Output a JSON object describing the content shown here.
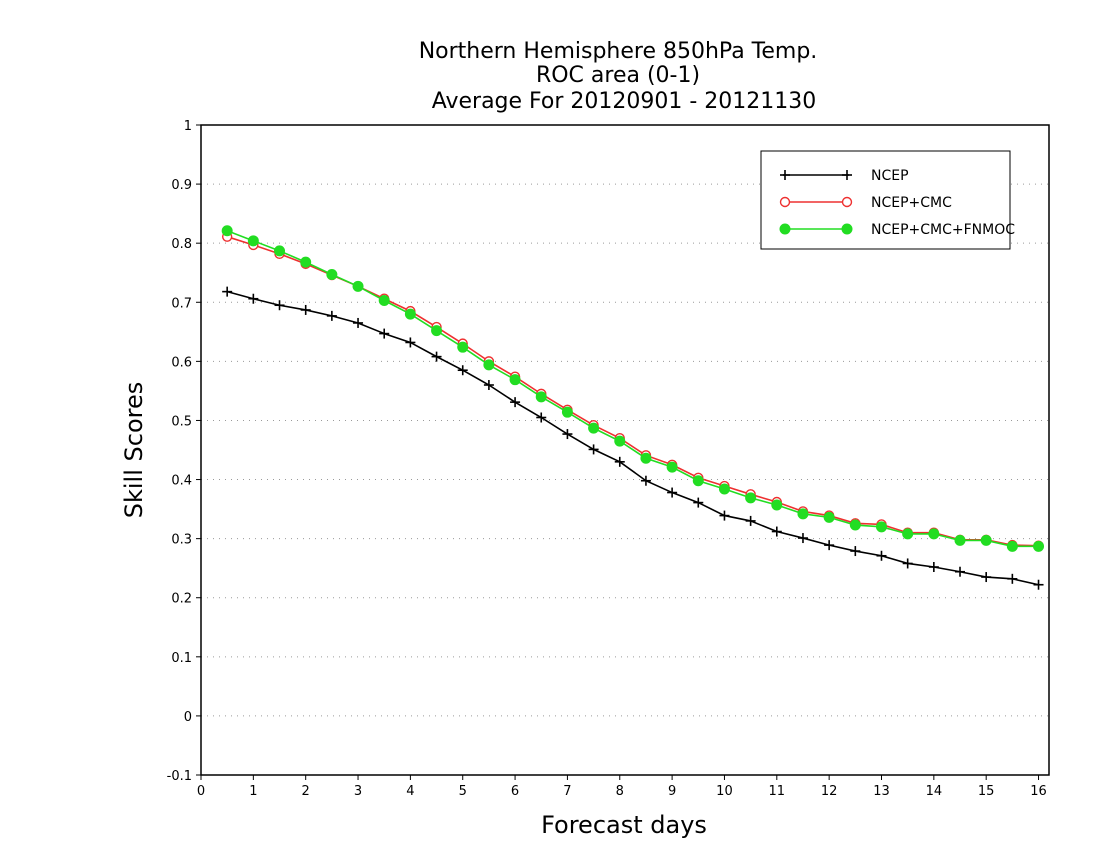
{
  "chart_data": {
    "type": "line",
    "title_lines": [
      "Northern Hemisphere 850hPa Temp.",
      "ROC area (0-1)",
      "Average For 20120901 - 20121130"
    ],
    "xlabel": "Forecast days",
    "ylabel": "Skill Scores",
    "xlim": [
      0,
      16.2
    ],
    "ylim": [
      -0.1,
      1
    ],
    "x_ticks": [
      0,
      1,
      2,
      3,
      4,
      5,
      6,
      7,
      8,
      9,
      10,
      11,
      12,
      13,
      14,
      15,
      16
    ],
    "y_ticks": [
      -0.1,
      0,
      0.1,
      0.2,
      0.3,
      0.4,
      0.5,
      0.6,
      0.7,
      0.8,
      0.9,
      1
    ],
    "y_tick_labels": [
      "-0.1",
      "0",
      "0.1",
      "0.2",
      "0.3",
      "0.4",
      "0.5",
      "0.6",
      "0.7",
      "0.8",
      "0.9",
      "1"
    ],
    "grid": "horizontal-dotted",
    "legend_position": "top-right",
    "x": [
      0.5,
      1,
      1.5,
      2,
      2.5,
      3,
      3.5,
      4,
      4.5,
      5,
      5.5,
      6,
      6.5,
      7,
      7.5,
      8,
      8.5,
      9,
      9.5,
      10,
      10.5,
      11,
      11.5,
      12,
      12.5,
      13,
      13.5,
      14,
      14.5,
      15,
      15.5,
      16
    ],
    "series": [
      {
        "name": "NCEP",
        "color": "#000000",
        "marker": "plus",
        "values": [
          0.718,
          0.706,
          0.695,
          0.687,
          0.677,
          0.665,
          0.647,
          0.632,
          0.608,
          0.585,
          0.56,
          0.531,
          0.505,
          0.477,
          0.451,
          0.43,
          0.398,
          0.378,
          0.361,
          0.339,
          0.33,
          0.312,
          0.301,
          0.289,
          0.279,
          0.271,
          0.258,
          0.252,
          0.244,
          0.235,
          0.232,
          0.222
        ]
      },
      {
        "name": "NCEP+CMC",
        "color": "#ee3030",
        "marker": "open-circle",
        "values": [
          0.811,
          0.797,
          0.782,
          0.765,
          0.746,
          0.727,
          0.706,
          0.685,
          0.658,
          0.63,
          0.6,
          0.574,
          0.545,
          0.518,
          0.492,
          0.47,
          0.441,
          0.425,
          0.403,
          0.389,
          0.375,
          0.362,
          0.346,
          0.339,
          0.326,
          0.324,
          0.31,
          0.31,
          0.298,
          0.298,
          0.289,
          0.288
        ]
      },
      {
        "name": "NCEP+CMC+FNMOC",
        "color": "#22dd22",
        "marker": "filled-circle",
        "values": [
          0.821,
          0.804,
          0.787,
          0.768,
          0.747,
          0.727,
          0.703,
          0.68,
          0.652,
          0.624,
          0.594,
          0.569,
          0.54,
          0.514,
          0.487,
          0.465,
          0.436,
          0.421,
          0.398,
          0.384,
          0.369,
          0.357,
          0.342,
          0.336,
          0.323,
          0.32,
          0.308,
          0.308,
          0.297,
          0.297,
          0.287,
          0.287
        ]
      }
    ]
  }
}
